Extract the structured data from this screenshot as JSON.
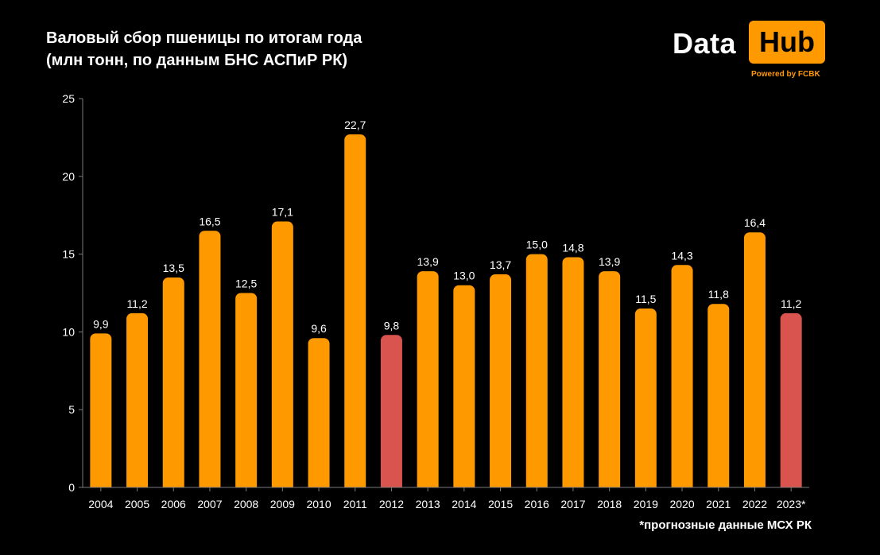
{
  "title_lines": [
    "Валовый сбор пшеницы по итогам года",
    "(млн тонн, по данным БНС АСПиР РК)"
  ],
  "logo": {
    "word1": "Data",
    "word2": "Hub",
    "tagline": "Powered by FCBK"
  },
  "footnote": "*прогнозные данные МСХ РК",
  "colors": {
    "background": "#000000",
    "bar": "#ff9900",
    "highlight": "#d9534f",
    "text": "#ffffff",
    "axis": "#7a7a7a"
  },
  "chart_data": {
    "type": "bar",
    "categories": [
      "2004",
      "2005",
      "2006",
      "2007",
      "2008",
      "2009",
      "2010",
      "2011",
      "2012",
      "2013",
      "2014",
      "2015",
      "2016",
      "2017",
      "2018",
      "2019",
      "2020",
      "2021",
      "2022",
      "2023*"
    ],
    "values": [
      9.9,
      11.2,
      13.5,
      16.5,
      12.5,
      17.1,
      9.6,
      22.7,
      9.8,
      13.9,
      13.0,
      13.7,
      15.0,
      14.8,
      13.9,
      11.5,
      14.3,
      11.8,
      16.4,
      11.2
    ],
    "labels": [
      "9,9",
      "11,2",
      "13,5",
      "16,5",
      "12,5",
      "17,1",
      "9,6",
      "22,7",
      "9,8",
      "13,9",
      "13,0",
      "13,7",
      "15,0",
      "14,8",
      "13,9",
      "11,5",
      "14,3",
      "11,8",
      "16,4",
      "11,2"
    ],
    "highlighted_categories": [
      "2012",
      "2023*"
    ],
    "ylim": [
      0,
      25
    ],
    "yticks": [
      0,
      5,
      10,
      15,
      20,
      25
    ],
    "grid": false,
    "title": "",
    "xlabel": "",
    "ylabel": ""
  }
}
